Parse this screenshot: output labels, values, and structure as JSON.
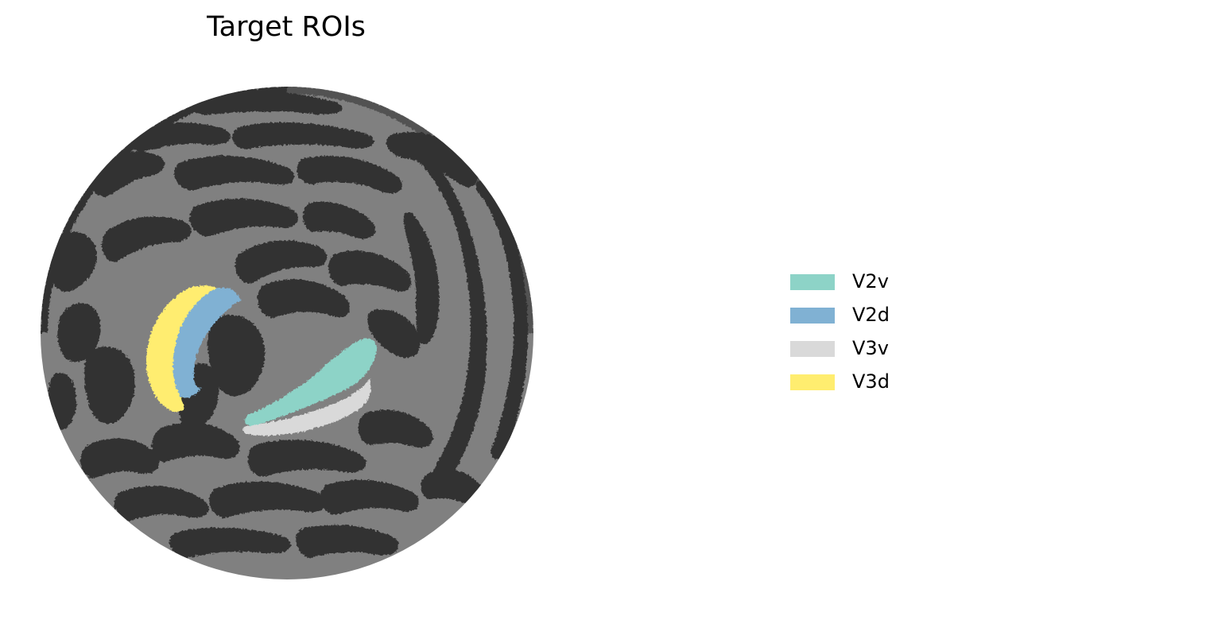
{
  "title": "Target ROIs",
  "colors": {
    "gyri": "#808080",
    "sulci": "#333333",
    "background": "#ffffff"
  },
  "legend": [
    {
      "label": "V2v",
      "color": "#8dd3c7"
    },
    {
      "label": "V2d",
      "color": "#80b1d3"
    },
    {
      "label": "V3v",
      "color": "#d9d9d9"
    },
    {
      "label": "V3d",
      "color": "#ffed6f"
    }
  ]
}
